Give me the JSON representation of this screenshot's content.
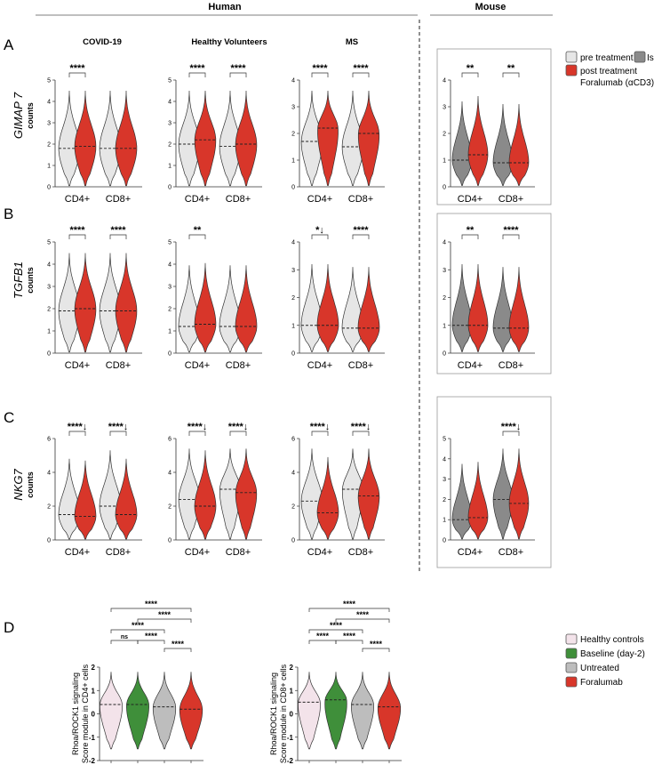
{
  "header": {
    "left": "Human",
    "right": "Mouse"
  },
  "panel_letters": [
    "A",
    "B",
    "C",
    "D"
  ],
  "column_titles": [
    "COVID-19",
    "Healthy Volunteers",
    "MS"
  ],
  "row_labels": [
    {
      "gene": "GIMAP 7",
      "sub": "counts"
    },
    {
      "gene": "TGFB1",
      "sub": "counts"
    },
    {
      "gene": "NKG7",
      "sub": "counts"
    }
  ],
  "legend_top": {
    "pre_label": "pre treatment",
    "iso_label": "Iso",
    "post_label": "post treatment",
    "post_label2": "Foralumab (αCD3)",
    "colors": {
      "pre": "#e6e6e6",
      "iso": "#8a8a8a",
      "post": "#d8362a"
    }
  },
  "legend_bottom": {
    "items": [
      {
        "label": "Healthy controls",
        "color": "#f3e3ea"
      },
      {
        "label": "Baseline (day-2)",
        "color": "#3f8f3a"
      },
      {
        "label": "Untreated",
        "color": "#bdbdbd"
      },
      {
        "label": "Foralumab",
        "color": "#d8362a"
      }
    ]
  },
  "chart_data": [
    {
      "type": "violin",
      "row": "A",
      "column": "COVID-19",
      "categories": [
        "CD4+",
        "CD8+"
      ],
      "ylim": [
        0,
        5
      ],
      "yticks": [
        "0",
        "1",
        "2",
        "3",
        "4",
        "5"
      ],
      "series": [
        {
          "name": "pre treatment",
          "medians": [
            1.8,
            1.8
          ]
        },
        {
          "name": "post treatment Foralumab (αCD3)",
          "medians": [
            1.9,
            1.8
          ]
        }
      ],
      "annotations": [
        "****",
        ""
      ]
    },
    {
      "type": "violin",
      "row": "A",
      "column": "Healthy Volunteers",
      "categories": [
        "CD4+",
        "CD8+"
      ],
      "ylim": [
        0,
        5
      ],
      "yticks": [
        "0",
        "1",
        "2",
        "3",
        "4",
        "5"
      ],
      "series": [
        {
          "name": "pre treatment",
          "medians": [
            2.0,
            1.9
          ]
        },
        {
          "name": "post treatment Foralumab (αCD3)",
          "medians": [
            2.2,
            2.0
          ]
        }
      ],
      "annotations": [
        "****",
        "****"
      ]
    },
    {
      "type": "violin",
      "row": "A",
      "column": "MS",
      "categories": [
        "CD4+",
        "CD8+"
      ],
      "ylim": [
        0,
        4
      ],
      "yticks": [
        "0",
        "1",
        "2",
        "3",
        "4"
      ],
      "series": [
        {
          "name": "pre treatment",
          "medians": [
            1.7,
            1.5
          ]
        },
        {
          "name": "post treatment Foralumab (αCD3)",
          "medians": [
            2.2,
            2.0
          ]
        }
      ],
      "annotations": [
        "****",
        "****"
      ]
    },
    {
      "type": "violin",
      "row": "A",
      "column": "Mouse",
      "categories": [
        "CD4+",
        "CD8+"
      ],
      "ylim": [
        0,
        4
      ],
      "yticks": [
        "0",
        "1",
        "2",
        "3",
        "4"
      ],
      "series": [
        {
          "name": "Iso",
          "medians": [
            1.0,
            0.9
          ]
        },
        {
          "name": "post treatment Foralumab (αCD3)",
          "medians": [
            1.2,
            0.9
          ]
        }
      ],
      "annotations": [
        "**",
        "**"
      ]
    },
    {
      "type": "violin",
      "row": "B",
      "column": "COVID-19",
      "categories": [
        "CD4+",
        "CD8+"
      ],
      "ylim": [
        0,
        5
      ],
      "yticks": [
        "0",
        "1",
        "2",
        "3",
        "4",
        "5"
      ],
      "series": [
        {
          "name": "pre treatment",
          "medians": [
            1.9,
            1.9
          ]
        },
        {
          "name": "post treatment Foralumab (αCD3)",
          "medians": [
            2.0,
            1.9
          ]
        }
      ],
      "annotations": [
        "****",
        "****"
      ]
    },
    {
      "type": "violin",
      "row": "B",
      "column": "Healthy Volunteers",
      "categories": [
        "CD4+",
        "CD8+"
      ],
      "ylim": [
        0,
        5
      ],
      "yticks": [
        "0",
        "1",
        "2",
        "3",
        "4",
        "5"
      ],
      "series": [
        {
          "name": "pre treatment",
          "medians": [
            1.2,
            1.2
          ]
        },
        {
          "name": "post treatment Foralumab (αCD3)",
          "medians": [
            1.3,
            1.2
          ]
        }
      ],
      "annotations": [
        "**",
        ""
      ]
    },
    {
      "type": "violin",
      "row": "B",
      "column": "MS",
      "categories": [
        "CD4+",
        "CD8+"
      ],
      "ylim": [
        0,
        4
      ],
      "yticks": [
        "0",
        "1",
        "2",
        "3",
        "4"
      ],
      "series": [
        {
          "name": "pre treatment",
          "medians": [
            1.0,
            0.9
          ]
        },
        {
          "name": "post treatment Foralumab (αCD3)",
          "medians": [
            1.0,
            0.9
          ]
        }
      ],
      "annotations": [
        "*↓",
        "****"
      ]
    },
    {
      "type": "violin",
      "row": "B",
      "column": "Mouse",
      "categories": [
        "CD4+",
        "CD8+"
      ],
      "ylim": [
        0,
        4
      ],
      "yticks": [
        "0",
        "1",
        "2",
        "3",
        "4"
      ],
      "series": [
        {
          "name": "Iso",
          "medians": [
            1.0,
            0.9
          ]
        },
        {
          "name": "post treatment Foralumab (αCD3)",
          "medians": [
            1.0,
            0.9
          ]
        }
      ],
      "annotations": [
        "**",
        "****"
      ]
    },
    {
      "type": "violin",
      "row": "C",
      "column": "COVID-19",
      "categories": [
        "CD4+",
        "CD8+"
      ],
      "ylim": [
        0,
        6
      ],
      "yticks": [
        "0",
        "2",
        "4",
        "6"
      ],
      "series": [
        {
          "name": "pre treatment",
          "medians": [
            1.5,
            2.0
          ]
        },
        {
          "name": "post treatment Foralumab (αCD3)",
          "medians": [
            1.4,
            1.5
          ]
        }
      ],
      "annotations": [
        "****↓",
        "****↓"
      ]
    },
    {
      "type": "violin",
      "row": "C",
      "column": "Healthy Volunteers",
      "categories": [
        "CD4+",
        "CD8+"
      ],
      "ylim": [
        0,
        6
      ],
      "yticks": [
        "0",
        "2",
        "4",
        "6"
      ],
      "series": [
        {
          "name": "pre treatment",
          "medians": [
            2.4,
            3.0
          ]
        },
        {
          "name": "post treatment Foralumab (αCD3)",
          "medians": [
            2.0,
            2.8
          ]
        }
      ],
      "annotations": [
        "****↓",
        "****↓"
      ]
    },
    {
      "type": "violin",
      "row": "C",
      "column": "MS",
      "categories": [
        "CD4+",
        "CD8+"
      ],
      "ylim": [
        0,
        6
      ],
      "yticks": [
        "0",
        "2",
        "4",
        "6"
      ],
      "series": [
        {
          "name": "pre treatment",
          "medians": [
            2.3,
            3.0
          ]
        },
        {
          "name": "post treatment Foralumab (αCD3)",
          "medians": [
            1.6,
            2.6
          ]
        }
      ],
      "annotations": [
        "****↓",
        "****↓"
      ]
    },
    {
      "type": "violin",
      "row": "C",
      "column": "Mouse",
      "categories": [
        "CD4+",
        "CD8+"
      ],
      "ylim": [
        0,
        5
      ],
      "yticks": [
        "0",
        "1",
        "2",
        "3",
        "4",
        "5"
      ],
      "series": [
        {
          "name": "Iso",
          "medians": [
            1.0,
            2.0
          ]
        },
        {
          "name": "post treatment Foralumab (αCD3)",
          "medians": [
            1.1,
            1.8
          ]
        }
      ],
      "annotations": [
        "",
        "****↓"
      ]
    },
    {
      "type": "violin",
      "row": "D",
      "panel": "left",
      "ylabel": "Rhoa/ROCK1 signaling\nScore module in CD4+ cells",
      "ylim": [
        -2,
        2
      ],
      "yticks": [
        "-2",
        "-1",
        "0",
        "1",
        "2"
      ],
      "categories": [
        "Healthy controls",
        "Baseline (day-2)",
        "Untreated",
        "Foralumab"
      ],
      "medians": [
        0.4,
        0.4,
        0.3,
        0.2
      ],
      "comparisons": [
        {
          "pair": [
            2,
            3
          ],
          "label": "****"
        },
        {
          "pair": [
            1,
            2
          ],
          "label": "****"
        },
        {
          "pair": [
            0,
            1
          ],
          "label": "ns"
        },
        {
          "pair": [
            0,
            2
          ],
          "label": "****"
        },
        {
          "pair": [
            1,
            3
          ],
          "label": "****"
        },
        {
          "pair": [
            0,
            3
          ],
          "label": "****"
        }
      ]
    },
    {
      "type": "violin",
      "row": "D",
      "panel": "right",
      "ylabel": "Rhoa/ROCK1 signaling\nScore module in CD8+ cells",
      "ylim": [
        -2,
        2
      ],
      "yticks": [
        "-2",
        "-1",
        "0",
        "1",
        "2"
      ],
      "categories": [
        "Healthy controls",
        "Baseline (day-2)",
        "Untreated",
        "Foralumab"
      ],
      "medians": [
        0.5,
        0.6,
        0.4,
        0.3
      ],
      "comparisons": [
        {
          "pair": [
            2,
            3
          ],
          "label": "****"
        },
        {
          "pair": [
            1,
            2
          ],
          "label": "****"
        },
        {
          "pair": [
            0,
            1
          ],
          "label": "****"
        },
        {
          "pair": [
            0,
            2
          ],
          "label": "****"
        },
        {
          "pair": [
            1,
            3
          ],
          "label": "****"
        },
        {
          "pair": [
            0,
            3
          ],
          "label": "****"
        }
      ]
    }
  ]
}
